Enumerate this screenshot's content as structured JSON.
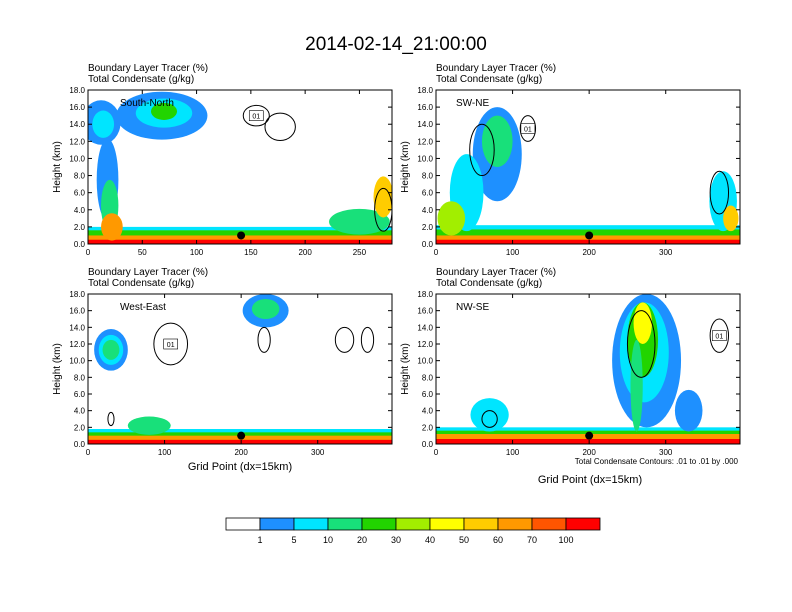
{
  "figure": {
    "title": "2014-02-14_21:00:00",
    "note": "Total Condensate Contours: .01 to .01 by .000",
    "xlabel": "Grid Point (dx=15km)"
  },
  "colorbar": {
    "labels": [
      "1",
      "5",
      "10",
      "20",
      "30",
      "40",
      "50",
      "60",
      "70",
      "100"
    ],
    "colors": [
      "#ffffff",
      "#1e90ff",
      "#00e5ff",
      "#18e07a",
      "#22d400",
      "#a2ee00",
      "#ffff00",
      "#ffcc00",
      "#ff9900",
      "#ff5500",
      "#ff0000"
    ]
  },
  "chart_data": [
    {
      "type": "heatmap",
      "panel": "South-North",
      "header_line1": "Boundary Layer Tracer    (%)",
      "header_line2": "Total Condensate    (g/kg)",
      "ylabel": "Height (km)",
      "xlabel": "",
      "xlim": [
        0,
        280
      ],
      "ylim": [
        0,
        18
      ],
      "xticks": [
        "0",
        "50",
        "100",
        "150",
        "200",
        "250"
      ],
      "yticks": [
        "0.0",
        "2.0",
        "4.0",
        "6.0",
        "8.0",
        "10.0",
        "12.0",
        "14.0",
        "16.0",
        "18.0"
      ],
      "contour_label": "01",
      "marker": {
        "x": 141,
        "y": 1.0
      },
      "blobs": [
        {
          "cx": 12,
          "cy": 14.2,
          "rx": 18,
          "ry": 2.6,
          "level": 1
        },
        {
          "cx": 14,
          "cy": 14.0,
          "rx": 10,
          "ry": 1.6,
          "level": 2
        },
        {
          "cx": 68,
          "cy": 15.0,
          "rx": 42,
          "ry": 2.8,
          "level": 1
        },
        {
          "cx": 70,
          "cy": 15.3,
          "rx": 26,
          "ry": 1.7,
          "level": 2
        },
        {
          "cx": 70,
          "cy": 15.5,
          "rx": 12,
          "ry": 1.0,
          "level": 4
        },
        {
          "cx": 18,
          "cy": 7.5,
          "rx": 10,
          "ry": 4.8,
          "level": 1
        },
        {
          "cx": 20,
          "cy": 4.5,
          "rx": 8,
          "ry": 3.0,
          "level": 3
        },
        {
          "cx": 22,
          "cy": 2.0,
          "rx": 10,
          "ry": 1.6,
          "level": 8
        },
        {
          "cx": 250,
          "cy": 2.6,
          "rx": 28,
          "ry": 1.5,
          "level": 3
        },
        {
          "cx": 272,
          "cy": 5.5,
          "rx": 9,
          "ry": 2.4,
          "level": 7
        }
      ],
      "contours": [
        {
          "cx": 155,
          "cy": 15.0,
          "rx": 12,
          "ry": 1.2
        },
        {
          "cx": 177,
          "cy": 13.7,
          "rx": 14,
          "ry": 1.6
        },
        {
          "cx": 272,
          "cy": 4.0,
          "rx": 8,
          "ry": 2.5
        }
      ],
      "surface_layers": [
        {
          "level": 2,
          "top": 2.0,
          "x0": 0,
          "x1": 280
        },
        {
          "level": 4,
          "top": 1.6,
          "x0": 0,
          "x1": 280
        },
        {
          "level": 8,
          "top": 1.0,
          "x0": 0,
          "x1": 280
        },
        {
          "level": 10,
          "top": 0.5,
          "x0": 0,
          "x1": 280
        }
      ]
    },
    {
      "type": "heatmap",
      "panel": "SW-NE",
      "header_line1": "Boundary Layer Tracer    (%)",
      "header_line2": "Total Condensate    (g/kg)",
      "ylabel": "Height (km)",
      "xlabel": "",
      "xlim": [
        0,
        397
      ],
      "ylim": [
        0,
        18
      ],
      "xticks": [
        "0",
        "100",
        "200",
        "300"
      ],
      "yticks": [
        "0.0",
        "2.0",
        "4.0",
        "6.0",
        "8.0",
        "10.0",
        "12.0",
        "14.0",
        "16.0",
        "18.0"
      ],
      "contour_label": "01",
      "marker": {
        "x": 200,
        "y": 1.0
      },
      "blobs": [
        {
          "cx": 80,
          "cy": 10.5,
          "rx": 32,
          "ry": 5.5,
          "level": 1
        },
        {
          "cx": 80,
          "cy": 12.0,
          "rx": 20,
          "ry": 3.0,
          "level": 3
        },
        {
          "cx": 40,
          "cy": 6.0,
          "rx": 22,
          "ry": 4.5,
          "level": 2
        },
        {
          "cx": 20,
          "cy": 3.0,
          "rx": 18,
          "ry": 2.0,
          "level": 5
        },
        {
          "cx": 375,
          "cy": 5.0,
          "rx": 18,
          "ry": 3.5,
          "level": 2
        },
        {
          "cx": 385,
          "cy": 3.0,
          "rx": 10,
          "ry": 1.5,
          "level": 7
        }
      ],
      "contours": [
        {
          "cx": 120,
          "cy": 13.5,
          "rx": 10,
          "ry": 1.5
        },
        {
          "cx": 60,
          "cy": 11.0,
          "rx": 16,
          "ry": 3.0
        },
        {
          "cx": 370,
          "cy": 6.0,
          "rx": 12,
          "ry": 2.5
        }
      ],
      "surface_layers": [
        {
          "level": 2,
          "top": 2.2,
          "x0": 0,
          "x1": 397
        },
        {
          "level": 4,
          "top": 1.7,
          "x0": 0,
          "x1": 397
        },
        {
          "level": 8,
          "top": 1.0,
          "x0": 0,
          "x1": 397
        },
        {
          "level": 10,
          "top": 0.5,
          "x0": 0,
          "x1": 397
        }
      ]
    },
    {
      "type": "heatmap",
      "panel": "West-East",
      "header_line1": "Boundary Layer Tracer    (%)",
      "header_line2": "Total Condensate    (g/kg)",
      "ylabel": "Height (km)",
      "xlabel": "",
      "xlim": [
        0,
        397
      ],
      "ylim": [
        0,
        18
      ],
      "xticks": [
        "0",
        "100",
        "200",
        "300"
      ],
      "yticks": [
        "0.0",
        "2.0",
        "4.0",
        "6.0",
        "8.0",
        "10.0",
        "12.0",
        "14.0",
        "16.0",
        "18.0"
      ],
      "contour_label": "01",
      "marker": {
        "x": 200,
        "y": 1.0
      },
      "blobs": [
        {
          "cx": 30,
          "cy": 11.3,
          "rx": 22,
          "ry": 2.5,
          "level": 1
        },
        {
          "cx": 30,
          "cy": 11.3,
          "rx": 16,
          "ry": 1.8,
          "level": 2
        },
        {
          "cx": 30,
          "cy": 11.3,
          "rx": 11,
          "ry": 1.2,
          "level": 3
        },
        {
          "cx": 232,
          "cy": 16.0,
          "rx": 30,
          "ry": 2.0,
          "level": 1
        },
        {
          "cx": 232,
          "cy": 16.2,
          "rx": 18,
          "ry": 1.2,
          "level": 3
        },
        {
          "cx": 80,
          "cy": 2.2,
          "rx": 28,
          "ry": 1.1,
          "level": 3
        }
      ],
      "contours": [
        {
          "cx": 108,
          "cy": 12.0,
          "rx": 22,
          "ry": 2.5
        },
        {
          "cx": 230,
          "cy": 12.5,
          "rx": 8,
          "ry": 1.5
        },
        {
          "cx": 335,
          "cy": 12.5,
          "rx": 12,
          "ry": 1.5
        },
        {
          "cx": 365,
          "cy": 12.5,
          "rx": 8,
          "ry": 1.5
        },
        {
          "cx": 30,
          "cy": 3.0,
          "rx": 4,
          "ry": 0.8
        }
      ],
      "surface_layers": [
        {
          "level": 2,
          "top": 1.8,
          "x0": 0,
          "x1": 397
        },
        {
          "level": 4,
          "top": 1.4,
          "x0": 0,
          "x1": 397
        },
        {
          "level": 8,
          "top": 1.0,
          "x0": 0,
          "x1": 397
        },
        {
          "level": 10,
          "top": 0.5,
          "x0": 0,
          "x1": 397
        }
      ]
    },
    {
      "type": "heatmap",
      "panel": "NW-SE",
      "header_line1": "Boundary Layer Tracer    (%)",
      "header_line2": "Total Condensate    (g/kg)",
      "ylabel": "Height (km)",
      "xlabel": "Grid Point (dx=15km)",
      "xlim": [
        0,
        397
      ],
      "ylim": [
        0,
        18
      ],
      "xticks": [
        "0",
        "100",
        "200",
        "300"
      ],
      "yticks": [
        "0.0",
        "2.0",
        "4.0",
        "6.0",
        "8.0",
        "10.0",
        "12.0",
        "14.0",
        "16.0",
        "18.0"
      ],
      "contour_label": "01",
      "marker": {
        "x": 200,
        "y": 1.0
      },
      "blobs": [
        {
          "cx": 275,
          "cy": 10.0,
          "rx": 45,
          "ry": 8.0,
          "level": 1
        },
        {
          "cx": 272,
          "cy": 11.0,
          "rx": 32,
          "ry": 6.0,
          "level": 2
        },
        {
          "cx": 270,
          "cy": 12.5,
          "rx": 20,
          "ry": 4.5,
          "level": 4
        },
        {
          "cx": 270,
          "cy": 14.5,
          "rx": 12,
          "ry": 2.5,
          "level": 6
        },
        {
          "cx": 262,
          "cy": 7.0,
          "rx": 8,
          "ry": 5.5,
          "level": 3
        },
        {
          "cx": 70,
          "cy": 3.5,
          "rx": 25,
          "ry": 2.0,
          "level": 2
        },
        {
          "cx": 330,
          "cy": 4.0,
          "rx": 18,
          "ry": 2.5,
          "level": 1
        }
      ],
      "contours": [
        {
          "cx": 370,
          "cy": 13.0,
          "rx": 12,
          "ry": 2.0
        },
        {
          "cx": 268,
          "cy": 12.0,
          "rx": 18,
          "ry": 4.0
        },
        {
          "cx": 70,
          "cy": 3.0,
          "rx": 10,
          "ry": 1.0
        }
      ],
      "surface_layers": [
        {
          "level": 2,
          "top": 2.0,
          "x0": 0,
          "x1": 397
        },
        {
          "level": 4,
          "top": 1.6,
          "x0": 0,
          "x1": 397
        },
        {
          "level": 8,
          "top": 1.2,
          "x0": 0,
          "x1": 397
        },
        {
          "level": 10,
          "top": 0.6,
          "x0": 0,
          "x1": 397
        }
      ]
    }
  ]
}
